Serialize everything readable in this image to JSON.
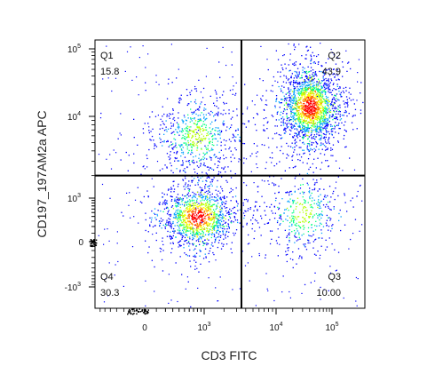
{
  "chart_data": {
    "type": "scatter",
    "subtype": "flow-cytometry-density-dot-plot",
    "xlabel": "CD3 FITC",
    "ylabel": "CD197_197AM2a APC",
    "x_scale": "biexponential",
    "y_scale": "biexponential",
    "x_ticks": [
      {
        "base": "0",
        "exp": ""
      },
      {
        "base": "10",
        "exp": "3"
      },
      {
        "base": "10",
        "exp": "4"
      },
      {
        "base": "10",
        "exp": "5"
      }
    ],
    "y_ticks": [
      {
        "base": "-10",
        "exp": "3"
      },
      {
        "base": "0",
        "exp": ""
      },
      {
        "base": "10",
        "exp": "3"
      },
      {
        "base": "10",
        "exp": "4"
      },
      {
        "base": "10",
        "exp": "5"
      }
    ],
    "gate": {
      "x": 3500,
      "y": 2000
    },
    "quadrants": [
      {
        "name": "Q1",
        "percent": "15.8",
        "position": "top-left"
      },
      {
        "name": "Q2",
        "percent": "43.9",
        "position": "top-right"
      },
      {
        "name": "Q3",
        "percent": "10.00",
        "position": "bottom-right"
      },
      {
        "name": "Q4",
        "percent": "30.3",
        "position": "bottom-left"
      }
    ],
    "populations": [
      {
        "quadrant": "Q2",
        "center_x": 40000,
        "center_y": 14000
      },
      {
        "quadrant": "Q4",
        "center_x": 800,
        "center_y": 400
      },
      {
        "quadrant": "Q1",
        "center_x": 800,
        "center_y": 6000
      },
      {
        "quadrant": "Q3",
        "center_x": 30000,
        "center_y": 500
      }
    ],
    "grid": false,
    "legend": "none",
    "colormap": [
      "#0000ff",
      "#00a0ff",
      "#00ff80",
      "#b4ff00",
      "#ffff00",
      "#ff8000",
      "#ff0000"
    ]
  }
}
